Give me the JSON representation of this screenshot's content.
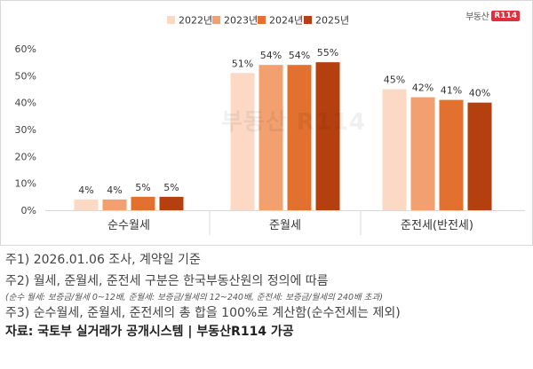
{
  "logo": {
    "text": "부동산",
    "badge": "R114"
  },
  "watermark": "부동산 R114",
  "chart_data": {
    "type": "bar",
    "categories": [
      "순수월세",
      "준월세",
      "준전세(반전세)"
    ],
    "series": [
      {
        "name": "2022년",
        "values": [
          4,
          51,
          45
        ],
        "color": "#fbd9c4"
      },
      {
        "name": "2023년",
        "values": [
          4,
          54,
          42
        ],
        "color": "#f2a070"
      },
      {
        "name": "2024년",
        "values": [
          5,
          54,
          41
        ],
        "color": "#e2702f"
      },
      {
        "name": "2025년",
        "values": [
          5,
          55,
          40
        ],
        "color": "#b5400f"
      }
    ],
    "value_suffix": "%",
    "y_ticks": [
      "0%",
      "10%",
      "20%",
      "30%",
      "40%",
      "50%",
      "60%"
    ],
    "ylim": [
      0,
      60
    ],
    "legend": "top",
    "grid": false
  },
  "notes": {
    "n1": "주1) 2026.01.06 조사, 계약일 기준",
    "n2": "주2) 월세, 준월세, 준전세 구분은 한국부동산원의 정의에 따름",
    "n_small": "(순수 월세: 보증금/월세 0~12배, 준월세: 보증금/월세의 12~240배, 준전세: 보증금/월세의 240배 초과)",
    "n3": "주3) 순수월세, 준월세, 준전세의 총 합을 100%로 계산함(순수전세는 제외)",
    "source": "자료: 국토부 실거래가 공개시스템 | 부동산R114 가공"
  }
}
